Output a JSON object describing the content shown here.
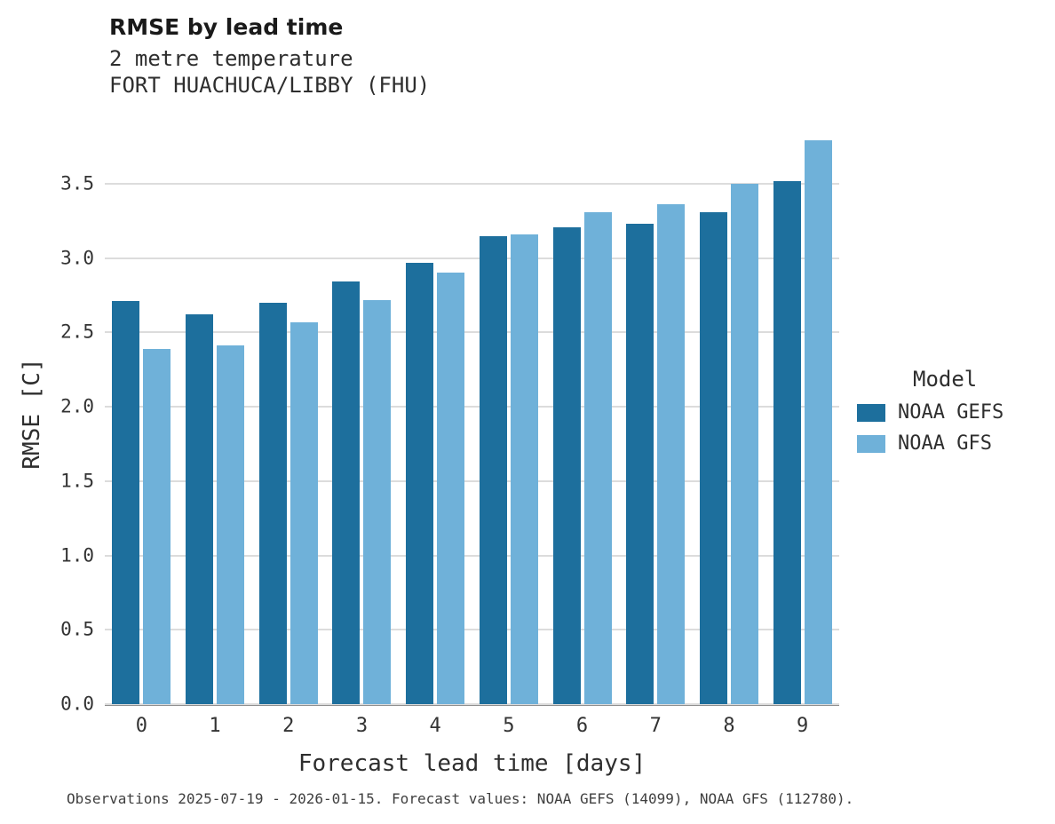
{
  "title": "RMSE by lead time",
  "subtitle1": "2 metre temperature",
  "subtitle2": "FORT HUACHUCA/LIBBY (FHU)",
  "caption": "Observations 2025-07-19 - 2026-01-15. Forecast values: NOAA GEFS (14099), NOAA GFS (112780).",
  "legend": {
    "title": "Model"
  },
  "colors": {
    "gefs": "#1d6f9d",
    "gfs": "#6fb1d9",
    "grid": "#dcdcdc",
    "axis": "#8f8f8f",
    "text": "#2e2e2e"
  },
  "chart_data": {
    "type": "bar",
    "title": "RMSE by lead time",
    "subtitle": "2 metre temperature — FORT HUACHUCA/LIBBY (FHU)",
    "xlabel": "Forecast lead time [days]",
    "ylabel": "RMSE [C]",
    "categories": [
      "0",
      "1",
      "2",
      "3",
      "4",
      "5",
      "6",
      "7",
      "8",
      "9"
    ],
    "series": [
      {
        "name": "NOAA GEFS",
        "color": "#1d6f9d",
        "values": [
          2.71,
          2.62,
          2.7,
          2.84,
          2.97,
          3.15,
          3.21,
          3.23,
          3.31,
          3.52
        ]
      },
      {
        "name": "NOAA GFS",
        "color": "#6fb1d9",
        "values": [
          2.39,
          2.41,
          2.57,
          2.72,
          2.9,
          3.16,
          3.31,
          3.36,
          3.5,
          3.79
        ]
      }
    ],
    "ylim": [
      0,
      3.9
    ],
    "yticks": [
      0.0,
      0.5,
      1.0,
      1.5,
      2.0,
      2.5,
      3.0,
      3.5
    ],
    "grid": true,
    "legend_position": "right"
  }
}
